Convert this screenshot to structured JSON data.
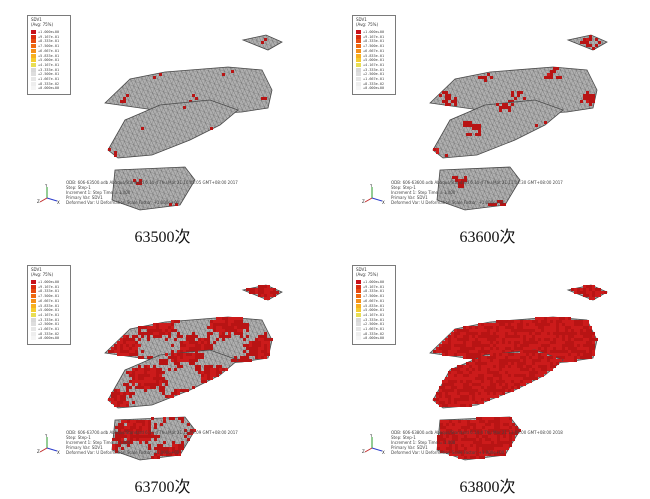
{
  "figure": {
    "panels": [
      {
        "caption": "63500次",
        "odb_line": "ODB: 606-63500.odb   Abaqus/Standard 6.14-4   Thu Mar 21 10:05:05 GMT+08:00 2017",
        "red_level": 0.08
      },
      {
        "caption": "63600次",
        "odb_line": "ODB: 606-63600.odb   Abaqus/Standard 6.14-4   Thu Mar 21 11:14:30 GMT+08:00 2017",
        "red_level": 0.18
      },
      {
        "caption": "63700次",
        "odb_line": "ODB: 606-63700.odb   Abaqus/Standard 6.14-4   Thu Mar 21 12:09:09 GMT+08:00 2017",
        "red_level": 0.45
      },
      {
        "caption": "63800次",
        "odb_line": "ODB: 606-63800.odb   Abaqus/Standard 6.14-4   Thu Mar 21 13:09:00 GMT+08:00 2018",
        "red_level": 0.9
      }
    ],
    "legend": {
      "title": "SDV1",
      "subtitle": "(Avg: 75%)",
      "levels": [
        "+1.000e+00",
        "+9.167e-01",
        "+8.333e-01",
        "+7.500e-01",
        "+6.667e-01",
        "+5.833e-01",
        "+5.000e-01",
        "+4.167e-01",
        "+3.333e-01",
        "+2.500e-01",
        "+1.667e-01",
        "+8.333e-02",
        "+0.000e+00"
      ],
      "colors": [
        "#c8101a",
        "#d92d10",
        "#e64a10",
        "#ef6a10",
        "#f5901a",
        "#f8b020",
        "#f5cc30",
        "#e8de55",
        "#d8d8d8",
        "#dedede",
        "#e6e6e6",
        "#eeeeee",
        "#f5f5f5"
      ]
    },
    "info_lines": [
      "Step: Step-1",
      "Increment     1: Step Time =    1.000",
      "Primary Var: SDV1",
      "Deformed Var: U   Deformation Scale Factor: +1.000e+00"
    ],
    "axes": {
      "y": "Y",
      "z": "Z",
      "x": "X"
    }
  }
}
